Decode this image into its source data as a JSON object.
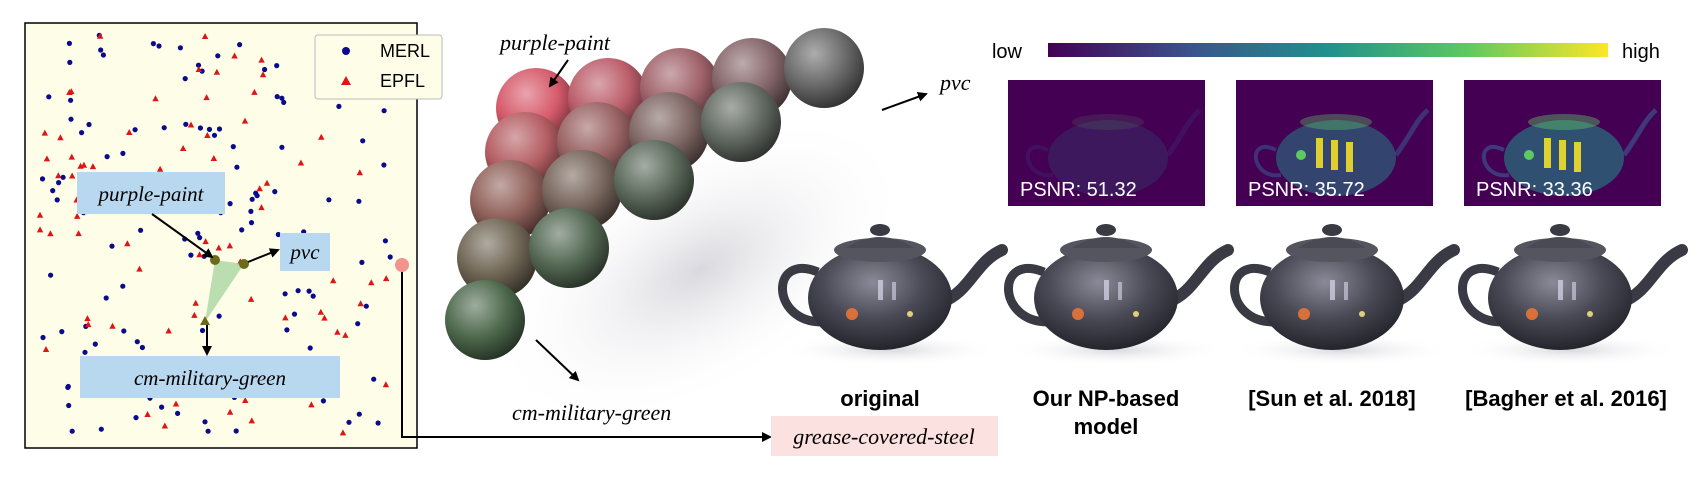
{
  "embedding_plot": {
    "legend": [
      {
        "label": "MERL",
        "marker": "circle",
        "color": "#0a0a8c"
      },
      {
        "label": "EPFL",
        "marker": "triangle",
        "color": "#e01414"
      }
    ],
    "labels": {
      "purple_paint": "purple-paint",
      "pvc": "pvc",
      "cm_military_green": "cm-military-green"
    },
    "background": "#fefee8",
    "highlight_label_color": "#b8d8f0"
  },
  "spheres": {
    "labels": {
      "purple_paint": "purple-paint",
      "pvc": "pvc",
      "cm_military_green": "cm-military-green"
    },
    "colors": {
      "purple_paint": "#d65a6a",
      "pvc": "#6a6a6a",
      "cm_military_green": "#4e6a4e"
    }
  },
  "error_maps": {
    "colorbar": {
      "low": "low",
      "high": "high"
    },
    "psnr": [
      {
        "label": "PSNR: 51.32",
        "level": 0.1
      },
      {
        "label": "PSNR: 35.72",
        "level": 0.75
      },
      {
        "label": "PSNR: 33.36",
        "level": 0.9
      }
    ]
  },
  "teapots": {
    "captions": [
      {
        "line1": "original",
        "line2": ""
      },
      {
        "line1": "Our NP-based",
        "line2": "model"
      },
      {
        "line1": "[Sun et al. 2018]",
        "line2": ""
      },
      {
        "line1": "[Bagher et al. 2016]",
        "line2": ""
      }
    ],
    "target_label": "grease-covered-steel",
    "target_label_bg": "#fbe1df"
  }
}
